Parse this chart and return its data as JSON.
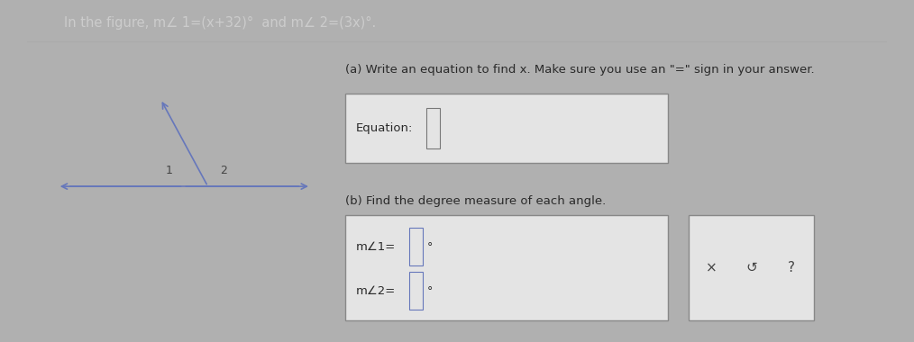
{
  "outer_bg": "#b0b0b0",
  "title_bg": "#3a3a3a",
  "panel_bg": "#e0e0e0",
  "title_text": "In the figure, m∠ 1=(x+32)°  and m∠ 2=(3x)°.",
  "title_color": "#cccccc",
  "title_fontsize": 10.5,
  "part_a_text": "(a) Write an equation to find x. Make sure you use an \"=\" sign in your answer.",
  "equation_label": "Equation:",
  "part_b_text": "(b) Find the degree measure of each angle.",
  "angle1_label": "m∠1=",
  "angle2_label": "m∠2=",
  "arrow_color": "#6677bb",
  "text_dark": "#2a2a2a",
  "text_medium": "#444444",
  "box_edge": "#888888",
  "box_face": "#d8d8d8",
  "white_box_face": "#e4e4e4",
  "side_symbols": [
    "×",
    "↺",
    "?"
  ]
}
